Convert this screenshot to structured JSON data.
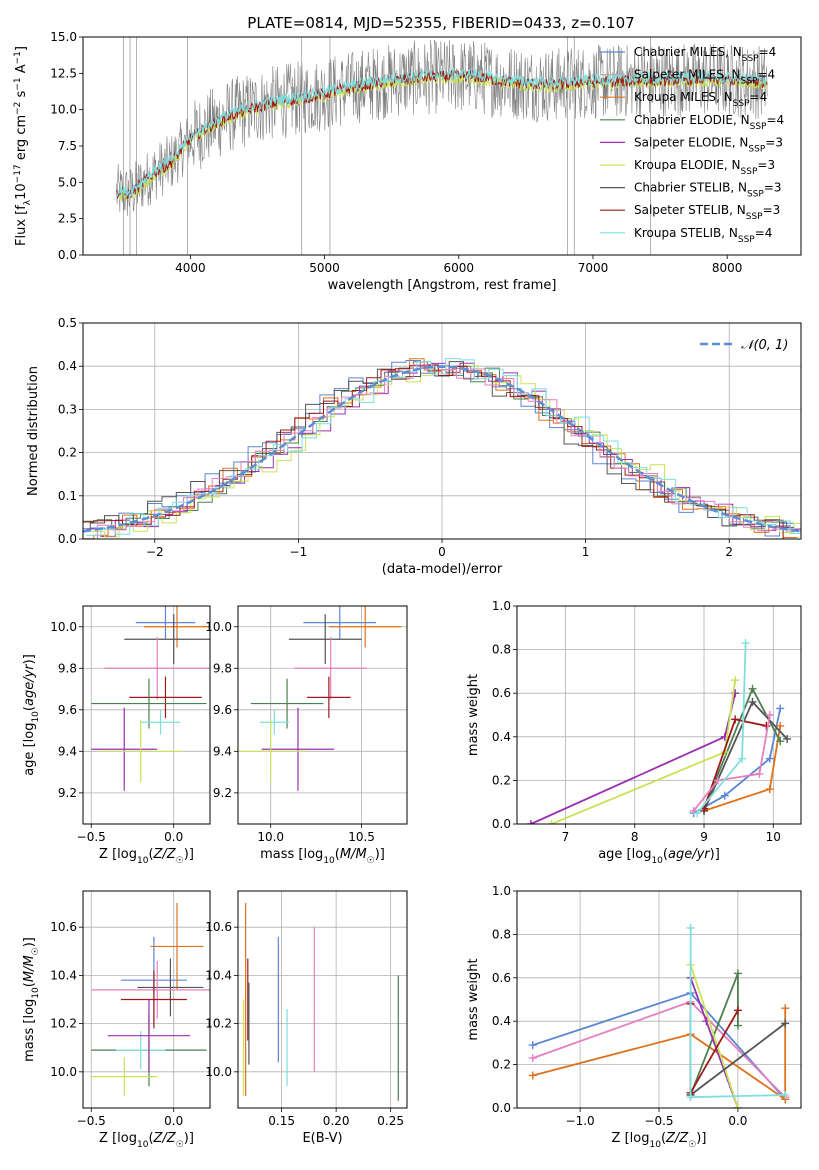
{
  "figure_title": "PLATE=0814, MJD=52355, FIBERID=0433, z=0.107",
  "colors": {
    "blue": "#5b86d4",
    "orange": "#e0701b",
    "darkgreen": "#4e7f4e",
    "purple": "#9a2fb0",
    "yellowgreen": "#c8e35a",
    "darkgray": "#555555",
    "darkred": "#9e1a1a",
    "pink": "#e67fbf",
    "cyan": "#7fdede",
    "spectrum": "#808080",
    "grid": "#b0b0b0"
  },
  "legend_entries": [
    {
      "name": "Chabrier MILES",
      "nssp": "4",
      "color": "#5b86d4"
    },
    {
      "name": "Salpeter MILES",
      "nssp": "4",
      "color": "#b0b0b0"
    },
    {
      "name": "Kroupa MILES",
      "nssp": "4",
      "color": "#e0701b"
    },
    {
      "name": "Chabrier ELODIE",
      "nssp": "4",
      "color": "#4e7f4e"
    },
    {
      "name": "Salpeter ELODIE",
      "nssp": "3",
      "color": "#9a2fb0"
    },
    {
      "name": "Kroupa ELODIE",
      "nssp": "3",
      "color": "#c8e35a"
    },
    {
      "name": "Chabrier STELIB",
      "nssp": "3",
      "color": "#555555"
    },
    {
      "name": "Salpeter STELIB",
      "nssp": "3",
      "color": "#9e1a1a"
    },
    {
      "name": "Kroupa STELIB",
      "nssp": "4",
      "color": "#7fdede"
    }
  ],
  "chart_data": [
    {
      "id": "spectrum",
      "type": "line",
      "xlabel": "wavelength [Angstrom, rest frame]",
      "ylabel": "Flux [f_λ10^-17 erg cm^-2 s^-1 A^-1]",
      "xlim": [
        3200,
        8550
      ],
      "ylim": [
        0,
        15
      ],
      "xticks": [
        4000,
        5000,
        6000,
        7000,
        8000
      ],
      "yticks": [
        0.0,
        2.5,
        5.0,
        7.5,
        10.0,
        12.5,
        15.0
      ],
      "legend_position": "upper right",
      "continuum": {
        "x": [
          3450,
          3550,
          3650,
          3750,
          3850,
          4000,
          4150,
          4300,
          4500,
          4700,
          4900,
          5100,
          5300,
          5500,
          5700,
          5900,
          6100,
          6300,
          6500,
          6700,
          6900,
          7100,
          7300,
          7500,
          7700,
          7900,
          8100,
          8300
        ],
        "y": [
          4.3,
          4.2,
          5.0,
          5.8,
          6.3,
          8.0,
          8.9,
          9.6,
          10.2,
          10.6,
          10.9,
          11.3,
          11.7,
          12.0,
          12.2,
          12.3,
          12.3,
          12.0,
          11.8,
          11.7,
          11.9,
          11.9,
          12.0,
          12.0,
          12.1,
          12.1,
          12.0,
          11.9
        ]
      }
    },
    {
      "id": "residual-histogram",
      "type": "line",
      "xlabel": "(data-model)/error",
      "ylabel": "Normed distribution",
      "xlim": [
        -2.5,
        2.5
      ],
      "ylim": [
        0,
        0.5
      ],
      "xticks": [
        -2,
        -1,
        0,
        1,
        2
      ],
      "yticks": [
        0.0,
        0.1,
        0.2,
        0.3,
        0.4,
        0.5
      ],
      "legend": "N(0,1)",
      "bin_width": 0.1
    },
    {
      "id": "age-vs-Z",
      "type": "scatter",
      "xlabel": "Z [log10(Z/Z☉)]",
      "ylabel": "age [log10(age/yr)]",
      "xlim": [
        -0.55,
        0.22
      ],
      "ylim": [
        9.05,
        10.1
      ],
      "xticks": [
        -0.5,
        0.0
      ],
      "yticks": [
        9.2,
        9.4,
        9.6,
        9.8,
        10.0
      ],
      "points": [
        {
          "color": "blue",
          "x": -0.05,
          "xerr": 0.18,
          "y": 10.02,
          "yerr": 0.08
        },
        {
          "color": "orange",
          "x": 0.02,
          "xerr": 0.2,
          "y": 10.0,
          "yerr": 0.1
        },
        {
          "color": "darkgray",
          "x": 0.0,
          "xerr": 0.3,
          "y": 9.94,
          "yerr": 0.12
        },
        {
          "color": "pink",
          "x": -0.1,
          "xerr": 0.32,
          "y": 9.8,
          "yerr": 0.15
        },
        {
          "color": "darkred",
          "x": -0.05,
          "xerr": 0.22,
          "y": 9.66,
          "yerr": 0.1
        },
        {
          "color": "darkgreen",
          "x": -0.15,
          "xerr": 0.35,
          "y": 9.63,
          "yerr": 0.12
        },
        {
          "color": "cyan",
          "x": -0.08,
          "xerr": 0.12,
          "y": 9.54,
          "yerr": 0.06
        },
        {
          "color": "purple",
          "x": -0.3,
          "xerr": 0.2,
          "y": 9.41,
          "yerr": 0.2
        },
        {
          "color": "yellowgreen",
          "x": -0.2,
          "xerr": 0.25,
          "y": 9.4,
          "yerr": 0.15
        }
      ]
    },
    {
      "id": "age-vs-mass",
      "type": "scatter",
      "xlabel": "mass [log10(M/M☉)]",
      "ylabel": "",
      "xlim": [
        9.82,
        10.75
      ],
      "ylim": [
        9.05,
        10.1
      ],
      "xticks": [
        10.0,
        10.5
      ],
      "yticks": [
        9.2,
        9.4,
        9.6,
        9.8,
        10.0
      ],
      "points": [
        {
          "color": "blue",
          "x": 10.38,
          "xerr": 0.2,
          "y": 10.02,
          "yerr": 0.08
        },
        {
          "color": "orange",
          "x": 10.52,
          "xerr": 0.2,
          "y": 10.0,
          "yerr": 0.1
        },
        {
          "color": "darkgray",
          "x": 10.3,
          "xerr": 0.2,
          "y": 9.94,
          "yerr": 0.12
        },
        {
          "color": "pink",
          "x": 10.33,
          "xerr": 0.2,
          "y": 9.8,
          "yerr": 0.15
        },
        {
          "color": "darkred",
          "x": 10.32,
          "xerr": 0.12,
          "y": 9.66,
          "yerr": 0.1
        },
        {
          "color": "darkgreen",
          "x": 10.09,
          "xerr": 0.2,
          "y": 9.63,
          "yerr": 0.12
        },
        {
          "color": "cyan",
          "x": 10.02,
          "xerr": 0.08,
          "y": 9.54,
          "yerr": 0.06
        },
        {
          "color": "purple",
          "x": 10.15,
          "xerr": 0.2,
          "y": 9.41,
          "yerr": 0.2
        },
        {
          "color": "yellowgreen",
          "x": 10.0,
          "xerr": 0.2,
          "y": 9.4,
          "yerr": 0.15
        }
      ]
    },
    {
      "id": "massweight-vs-age",
      "type": "line",
      "xlabel": "age [log10(age/yr)]",
      "ylabel": "mass weight",
      "xlim": [
        6.3,
        10.4
      ],
      "ylim": [
        0,
        1
      ],
      "xticks": [
        7,
        8,
        9,
        10
      ],
      "yticks": [
        0.0,
        0.2,
        0.4,
        0.6,
        0.8,
        1.0
      ],
      "series": [
        {
          "color": "blue",
          "x": [
            8.85,
            9.3,
            9.95,
            10.1
          ],
          "y": [
            0.05,
            0.13,
            0.3,
            0.53
          ]
        },
        {
          "color": "orange",
          "x": [
            9.0,
            9.95,
            10.1
          ],
          "y": [
            0.06,
            0.16,
            0.45
          ]
        },
        {
          "color": "darkgreen",
          "x": [
            9.0,
            9.7,
            10.1
          ],
          "y": [
            0.07,
            0.62,
            0.38
          ]
        },
        {
          "color": "purple",
          "x": [
            6.5,
            9.3,
            9.45
          ],
          "y": [
            0.0,
            0.4,
            0.6
          ]
        },
        {
          "color": "yellowgreen",
          "x": [
            6.8,
            9.3,
            9.45
          ],
          "y": [
            0.0,
            0.33,
            0.66
          ]
        },
        {
          "color": "darkgray",
          "x": [
            9.0,
            9.7,
            10.2
          ],
          "y": [
            0.06,
            0.56,
            0.39
          ]
        },
        {
          "color": "darkred",
          "x": [
            9.0,
            9.45,
            9.9
          ],
          "y": [
            0.07,
            0.48,
            0.45
          ]
        },
        {
          "color": "pink",
          "x": [
            8.85,
            9.2,
            9.8,
            9.95
          ],
          "y": [
            0.06,
            0.2,
            0.23,
            0.5
          ]
        },
        {
          "color": "cyan",
          "x": [
            8.9,
            9.55,
            9.6
          ],
          "y": [
            0.05,
            0.3,
            0.83
          ]
        }
      ]
    },
    {
      "id": "mass-vs-Z",
      "type": "scatter",
      "xlabel": "Z [log10(Z/Z☉)]",
      "ylabel": "mass [log10(M/M☉)]",
      "xlim": [
        -0.55,
        0.22
      ],
      "ylim": [
        9.85,
        10.75
      ],
      "xticks": [
        -0.5,
        0.0
      ],
      "yticks": [
        10.0,
        10.2,
        10.4,
        10.6
      ],
      "points": [
        {
          "color": "blue",
          "x": -0.12,
          "xerr": 0.2,
          "y": 10.38,
          "yerr": 0.18
        },
        {
          "color": "orange",
          "x": 0.02,
          "xerr": 0.16,
          "y": 10.52,
          "yerr": 0.18
        },
        {
          "color": "darkgray",
          "x": -0.02,
          "xerr": 0.2,
          "y": 10.35,
          "yerr": 0.12
        },
        {
          "color": "pink",
          "x": -0.1,
          "xerr": 0.4,
          "y": 10.34,
          "yerr": 0.12
        },
        {
          "color": "darkred",
          "x": -0.12,
          "xerr": 0.2,
          "y": 10.3,
          "yerr": 0.12
        },
        {
          "color": "darkgreen",
          "x": -0.15,
          "xerr": 0.35,
          "y": 10.09,
          "yerr": 0.15
        },
        {
          "color": "cyan",
          "x": -0.2,
          "xerr": 0.15,
          "y": 10.09,
          "yerr": 0.08
        },
        {
          "color": "purple",
          "x": -0.15,
          "xerr": 0.25,
          "y": 10.15,
          "yerr": 0.15
        },
        {
          "color": "yellowgreen",
          "x": -0.3,
          "xerr": 0.2,
          "y": 9.98,
          "yerr": 0.08
        }
      ]
    },
    {
      "id": "mass-vs-ebv",
      "type": "scatter",
      "xlabel": "E(B-V)",
      "ylabel": "",
      "xlim": [
        0.11,
        0.265
      ],
      "ylim": [
        9.85,
        10.75
      ],
      "xticks": [
        0.15,
        0.2,
        0.25
      ],
      "yticks": [
        10.0,
        10.2,
        10.4,
        10.6
      ],
      "points": [
        {
          "color": "orange",
          "x": 0.117,
          "y": 10.3,
          "yerr": 0.4
        },
        {
          "color": "yellowgreen",
          "x": 0.115,
          "y": 10.1,
          "yerr": 0.2
        },
        {
          "color": "darkred",
          "x": 0.119,
          "y": 10.3,
          "yerr": 0.17
        },
        {
          "color": "darkgray",
          "x": 0.12,
          "y": 10.2,
          "yerr": 0.17
        },
        {
          "color": "blue",
          "x": 0.147,
          "y": 10.3,
          "yerr": 0.26
        },
        {
          "color": "cyan",
          "x": 0.155,
          "y": 10.1,
          "yerr": 0.16
        },
        {
          "color": "pink",
          "x": 0.18,
          "y": 10.3,
          "yerr": 0.3
        },
        {
          "color": "darkgreen",
          "x": 0.257,
          "y": 10.14,
          "yerr": 0.26
        }
      ]
    },
    {
      "id": "massweight-vs-Z",
      "type": "line",
      "xlabel": "Z [log10(Z/Z☉)]",
      "ylabel": "mass weight",
      "xlim": [
        -1.4,
        0.4
      ],
      "ylim": [
        0,
        1
      ],
      "xticks": [
        -1.0,
        -0.5,
        0.0
      ],
      "yticks": [
        0.0,
        0.2,
        0.4,
        0.6,
        0.8,
        1.0
      ],
      "series": [
        {
          "color": "blue",
          "x": [
            -1.3,
            -0.3,
            0.3
          ],
          "y": [
            0.29,
            0.53,
            0.04
          ]
        },
        {
          "color": "pink",
          "x": [
            -1.3,
            -0.3,
            0.3
          ],
          "y": [
            0.23,
            0.49,
            0.05
          ]
        },
        {
          "color": "orange",
          "x": [
            -1.3,
            -0.3,
            0.3,
            0.3
          ],
          "y": [
            0.15,
            0.34,
            0.04,
            0.46
          ]
        },
        {
          "color": "darkgreen",
          "x": [
            -0.3,
            0.0,
            0.0
          ],
          "y": [
            0.06,
            0.62,
            0.38
          ]
        },
        {
          "color": "purple",
          "x": [
            -0.3,
            -0.2,
            0.0
          ],
          "y": [
            0.6,
            0.4,
            0.0
          ]
        },
        {
          "color": "yellowgreen",
          "x": [
            -0.3,
            0.0
          ],
          "y": [
            0.66,
            0.0
          ]
        },
        {
          "color": "darkgray",
          "x": [
            -0.3,
            0.3
          ],
          "y": [
            0.06,
            0.39
          ]
        },
        {
          "color": "darkred",
          "x": [
            -0.3,
            -0.3,
            0.0
          ],
          "y": [
            0.48,
            0.07,
            0.45
          ]
        },
        {
          "color": "cyan",
          "x": [
            -0.3,
            -0.3,
            0.3
          ],
          "y": [
            0.83,
            0.05,
            0.06
          ]
        }
      ]
    }
  ]
}
